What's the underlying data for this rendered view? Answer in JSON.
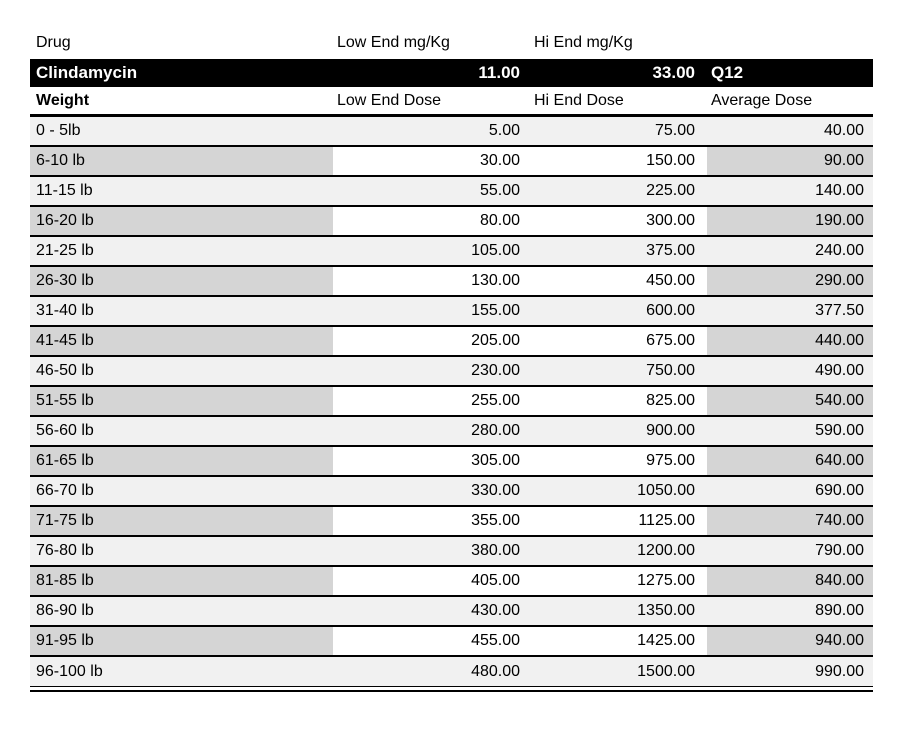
{
  "colors": {
    "band_background": "#000000",
    "band_text": "#ffffff",
    "light_row": "#f1f1f1",
    "dark_cell": "#d5d5d5",
    "white_cell": "#ffffff",
    "border": "#000000"
  },
  "drug_header": {
    "drug": "Drug",
    "low_end": "Low End mg/Kg",
    "hi_end": "Hi End mg/Kg"
  },
  "drug_row": {
    "name": "Clindamycin",
    "low_end_mg_kg": "11.00",
    "hi_end_mg_kg": "33.00",
    "frequency": "Q12"
  },
  "dose_header": {
    "weight": "Weight",
    "low_end": "Low End Dose",
    "hi_end": "Hi End Dose",
    "average": "Average Dose"
  },
  "rows": [
    {
      "weight": "0 - 5lb",
      "low": "5.00",
      "hi": "75.00",
      "avg": "40.00"
    },
    {
      "weight": "6-10 lb",
      "low": "30.00",
      "hi": "150.00",
      "avg": "90.00"
    },
    {
      "weight": "11-15 lb",
      "low": "55.00",
      "hi": "225.00",
      "avg": "140.00"
    },
    {
      "weight": "16-20 lb",
      "low": "80.00",
      "hi": "300.00",
      "avg": "190.00"
    },
    {
      "weight": "21-25 lb",
      "low": "105.00",
      "hi": "375.00",
      "avg": "240.00"
    },
    {
      "weight": "26-30 lb",
      "low": "130.00",
      "hi": "450.00",
      "avg": "290.00"
    },
    {
      "weight": "31-40 lb",
      "low": "155.00",
      "hi": "600.00",
      "avg": "377.50"
    },
    {
      "weight": "41-45 lb",
      "low": "205.00",
      "hi": "675.00",
      "avg": "440.00"
    },
    {
      "weight": "46-50 lb",
      "low": "230.00",
      "hi": "750.00",
      "avg": "490.00"
    },
    {
      "weight": "51-55 lb",
      "low": "255.00",
      "hi": "825.00",
      "avg": "540.00"
    },
    {
      "weight": "56-60 lb",
      "low": "280.00",
      "hi": "900.00",
      "avg": "590.00"
    },
    {
      "weight": "61-65 lb",
      "low": "305.00",
      "hi": "975.00",
      "avg": "640.00"
    },
    {
      "weight": "66-70 lb",
      "low": "330.00",
      "hi": "1050.00",
      "avg": "690.00"
    },
    {
      "weight": "71-75 lb",
      "low": "355.00",
      "hi": "1125.00",
      "avg": "740.00"
    },
    {
      "weight": "76-80 lb",
      "low": "380.00",
      "hi": "1200.00",
      "avg": "790.00"
    },
    {
      "weight": "81-85 lb",
      "low": "405.00",
      "hi": "1275.00",
      "avg": "840.00"
    },
    {
      "weight": "86-90 lb",
      "low": "430.00",
      "hi": "1350.00",
      "avg": "890.00"
    },
    {
      "weight": "91-95 lb",
      "low": "455.00",
      "hi": "1425.00",
      "avg": "940.00"
    },
    {
      "weight": "96-100 lb",
      "low": "480.00",
      "hi": "1500.00",
      "avg": "990.00"
    }
  ]
}
